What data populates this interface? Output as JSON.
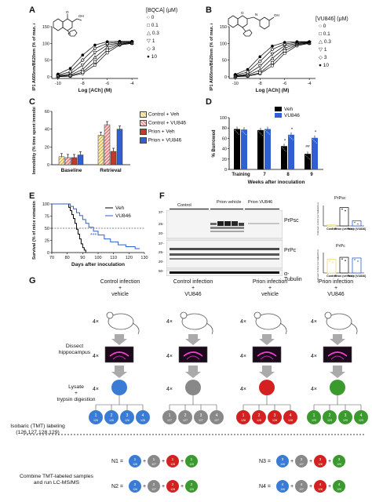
{
  "panels": {
    "A": {
      "letter": "A",
      "compound": "BQCA",
      "legend_title": "[BQCA] (μM)",
      "legend": [
        "0",
        "0.1",
        "0.3",
        "1",
        "3",
        "10"
      ],
      "ylabel": "IP1 A665nm/B620nm (% of max. ACh)",
      "xlabel": "Log [ACh] (M)",
      "xticks": [
        "-10",
        "-8",
        "-6",
        "-4"
      ],
      "yticks": [
        "0",
        "50",
        "100",
        "150"
      ]
    },
    "B": {
      "letter": "B",
      "compound": "VU846",
      "legend_title": "[VU846] (μM)",
      "legend": [
        "0",
        "0.1",
        "0.3",
        "1",
        "3",
        "10"
      ],
      "ylabel": "IP1 A665nm/B620nm (% of max. ACh)",
      "xlabel": "Log [ACh] (M)",
      "xticks": [
        "-10",
        "-8",
        "-6",
        "-4"
      ],
      "yticks": [
        "0",
        "50",
        "100",
        "150"
      ]
    },
    "C": {
      "letter": "C",
      "ylabel": "Immobility (% time spent immobile)",
      "groups": [
        "Baseline",
        "Retrieval"
      ],
      "legend": [
        "Control + Veh",
        "Control + VU846",
        "Prion + Veh",
        "Prion + VU846"
      ],
      "yticks": [
        "0",
        "20",
        "40",
        "60"
      ]
    },
    "D": {
      "letter": "D",
      "ylabel": "% Burrowed",
      "xlabel": "Weeks after inoculation",
      "categories": [
        "Training",
        "7",
        "8",
        "9"
      ],
      "legend": [
        "Veh",
        "VU846"
      ],
      "yticks": [
        "0",
        "20",
        "40",
        "60",
        "80",
        "100"
      ],
      "sig_labels": [
        "*",
        "*",
        "#",
        "#",
        "*"
      ]
    },
    "E": {
      "letter": "E",
      "ylabel": "Survival (% of mice remaining)",
      "xlabel": "Days after inoculation",
      "xticks": [
        "70",
        "80",
        "90",
        "100",
        "110",
        "120",
        "130"
      ],
      "yticks": [
        "0",
        "25",
        "50",
        "75",
        "100"
      ],
      "legend": [
        "Veh",
        "VU846"
      ],
      "sig": "***"
    },
    "F": {
      "letter": "F",
      "lanes": [
        "Control",
        "Prion vehicle",
        "Prion VU846"
      ],
      "mw": [
        "37-",
        "25-",
        "20-",
        "37-",
        "25-",
        "20-",
        "50-"
      ],
      "bands": [
        "PrPsc",
        "PrPc",
        "α-Tubulin"
      ],
      "inset1_title": "PrPsc",
      "inset2_title": "PrPc",
      "inset_ylabel1": "Fold over control (normalized to tubulin)",
      "inset_ylabel2": "Fold over control (normalized to tubulin)",
      "inset_x": [
        "Control",
        "Prion (vehicle)",
        "Prion (VU846)"
      ]
    },
    "G": {
      "letter": "G",
      "conditions": [
        {
          "title": "Control infection\n+\nvehicle",
          "color": "#3a7bd5"
        },
        {
          "title": "Control infection\n+\nVU846",
          "color": "#888888"
        },
        {
          "title": "Prion infection\n+\nvehicle",
          "color": "#d42020"
        },
        {
          "title": "Prion infection\n+\nVU846",
          "color": "#3a9a2e"
        }
      ],
      "steps": [
        "Dissect\nhippocampus",
        "Lysate\n+\ntrypsin digestion",
        "Isobaric (TMT) labeling\n(126,127,128,129)"
      ],
      "mult": "4×",
      "tmt_labels": [
        [
          "1\n126",
          "2\n126",
          "3\n126",
          "4\n126"
        ],
        [
          "1\n127",
          "2\n127",
          "3\n127",
          "4\n127"
        ],
        [
          "1\n128",
          "2\n128",
          "3\n128",
          "4\n128"
        ],
        [
          "1\n129",
          "2\n129",
          "3\n129",
          "4\n129"
        ]
      ],
      "combine_label": "Combine TMT-labeled samples\nand run LC-MS/MS",
      "n_sets": [
        "N1 =",
        "N2 =",
        "N3 =",
        "N4 ="
      ]
    }
  },
  "chart_data": [
    {
      "type": "line",
      "title": "",
      "xlabel": "Log [ACh] (M)",
      "ylabel": "IP1 A665nm/B620nm (% of max. ACh)",
      "xlim": [
        -10.5,
        -3.5
      ],
      "ylim": [
        -5,
        150
      ],
      "x": [
        -10,
        -9,
        -8,
        -7,
        -6,
        -5,
        -4
      ],
      "series": [
        {
          "name": "0",
          "values": [
            0,
            2,
            10,
            35,
            72,
            95,
            100
          ]
        },
        {
          "name": "0.1",
          "values": [
            1,
            3,
            14,
            45,
            80,
            97,
            101
          ]
        },
        {
          "name": "0.3",
          "values": [
            2,
            5,
            22,
            58,
            88,
            99,
            102
          ]
        },
        {
          "name": "1",
          "values": [
            3,
            9,
            35,
            72,
            95,
            101,
            103
          ]
        },
        {
          "name": "3",
          "values": [
            5,
            15,
            50,
            85,
            100,
            104,
            104
          ]
        },
        {
          "name": "10",
          "values": [
            8,
            25,
            65,
            95,
            105,
            106,
            106
          ]
        }
      ]
    },
    {
      "type": "line",
      "title": "",
      "xlabel": "Log [ACh] (M)",
      "ylabel": "IP1 A665nm/B620nm (% of max. ACh)",
      "xlim": [
        -10.5,
        -3.5
      ],
      "ylim": [
        -5,
        150
      ],
      "x": [
        -10,
        -9,
        -8,
        -7,
        -6,
        -5,
        -4
      ],
      "series": [
        {
          "name": "0",
          "values": [
            0,
            2,
            9,
            33,
            70,
            93,
            100
          ]
        },
        {
          "name": "0.1",
          "values": [
            1,
            3,
            12,
            42,
            78,
            96,
            101
          ]
        },
        {
          "name": "0.3",
          "values": [
            2,
            5,
            20,
            55,
            86,
            98,
            102
          ]
        },
        {
          "name": "1",
          "values": [
            3,
            8,
            32,
            68,
            93,
            100,
            103
          ]
        },
        {
          "name": "3",
          "values": [
            5,
            14,
            46,
            82,
            98,
            103,
            104
          ]
        },
        {
          "name": "10",
          "values": [
            7,
            22,
            60,
            92,
            103,
            105,
            105
          ]
        }
      ]
    },
    {
      "type": "bar",
      "title": "",
      "ylabel": "Immobility (% time spent immobile)",
      "ylim": [
        0,
        60
      ],
      "categories": [
        "Baseline",
        "Retrieval"
      ],
      "series": [
        {
          "name": "Control + Veh",
          "values": [
            9,
            33
          ]
        },
        {
          "name": "Control + VU846",
          "values": [
            8,
            45
          ]
        },
        {
          "name": "Prion + Veh",
          "values": [
            8,
            15
          ]
        },
        {
          "name": "Prion + VU846",
          "values": [
            11,
            40
          ]
        }
      ]
    },
    {
      "type": "bar",
      "title": "",
      "xlabel": "Weeks after inoculation",
      "ylabel": "% Burrowed",
      "ylim": [
        0,
        100
      ],
      "categories": [
        "Training",
        "7",
        "8",
        "9"
      ],
      "series": [
        {
          "name": "Veh",
          "values": [
            78,
            76,
            45,
            30
          ]
        },
        {
          "name": "VU846",
          "values": [
            77,
            78,
            67,
            61
          ]
        }
      ]
    },
    {
      "type": "line",
      "title": "",
      "xlabel": "Days after inoculation",
      "ylabel": "Survival (% of mice remaining)",
      "xlim": [
        70,
        130
      ],
      "ylim": [
        0,
        100
      ],
      "series": [
        {
          "name": "Veh",
          "x": [
            70,
            80,
            81,
            82,
            83,
            84,
            85,
            86,
            87,
            88,
            89,
            90,
            91,
            92
          ],
          "values": [
            100,
            100,
            93,
            86,
            78,
            70,
            60,
            48,
            38,
            28,
            18,
            10,
            5,
            0
          ]
        },
        {
          "name": "VU846",
          "x": [
            70,
            80,
            82,
            84,
            86,
            88,
            90,
            92,
            94,
            97,
            100,
            104,
            108,
            113,
            118,
            124,
            127
          ],
          "values": [
            100,
            100,
            95,
            90,
            82,
            76,
            68,
            60,
            52,
            44,
            36,
            28,
            22,
            16,
            12,
            8,
            8
          ]
        }
      ]
    },
    {
      "type": "bar",
      "title": "PrPsc",
      "categories": [
        "Control",
        "Prion (vehicle)",
        "Prion (VU846)"
      ],
      "values": [
        1,
        18,
        5
      ]
    },
    {
      "type": "bar",
      "title": "PrPc",
      "categories": [
        "Control",
        "Prion (vehicle)",
        "Prion (VU846)"
      ],
      "values": [
        1.0,
        1.15,
        1.1
      ]
    }
  ]
}
